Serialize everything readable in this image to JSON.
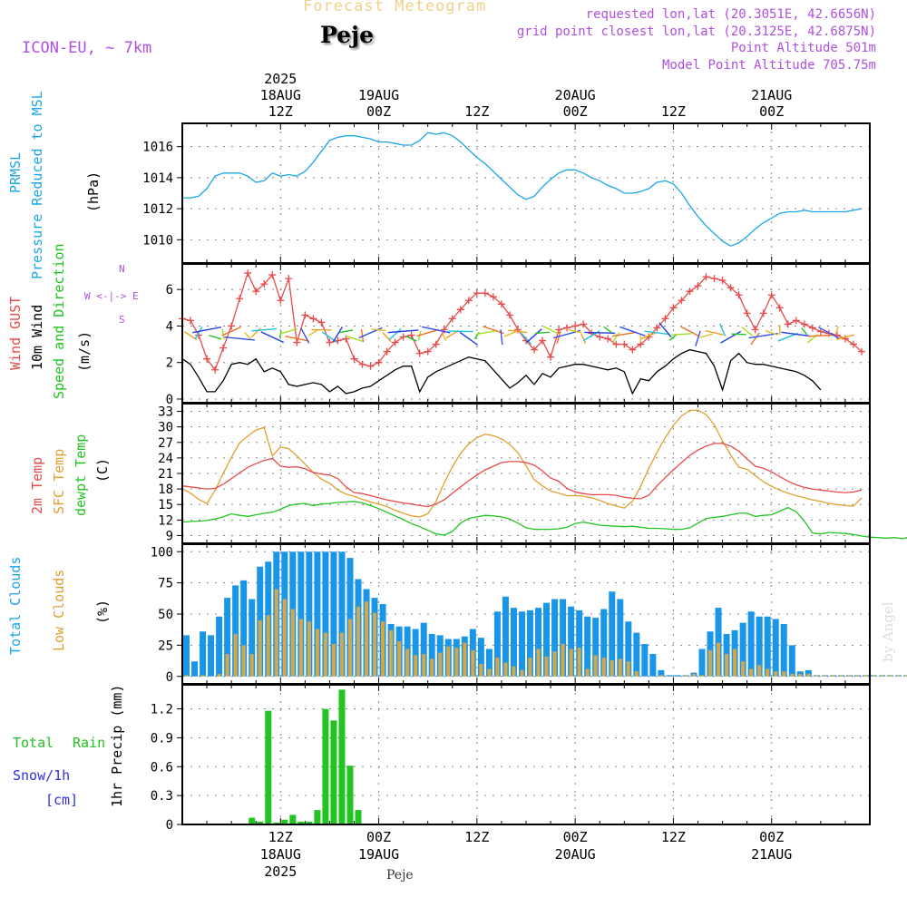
{
  "header": {
    "title_top": "Forecast Meteogram",
    "location": "Peje",
    "model": "ICON-EU, ~ 7km",
    "requested": "requested lon,lat (20.3051E, 42.6656N)",
    "grid_point": "grid point closest lon,lat (20.3125E, 42.6875N)",
    "point_alt": "Point Altitude 501m",
    "model_alt": "Model Point Altitude 705.75m"
  },
  "time_axis": {
    "top_labels": [
      {
        "hour": 12,
        "l1": "2025",
        "l2": "18AUG",
        "l3": "12Z"
      },
      {
        "hour": 24,
        "l1": "",
        "l2": "19AUG",
        "l3": "00Z"
      },
      {
        "hour": 36,
        "l1": "",
        "l2": "",
        "l3": "12Z"
      },
      {
        "hour": 48,
        "l1": "",
        "l2": "20AUG",
        "l3": "00Z"
      },
      {
        "hour": 60,
        "l1": "",
        "l2": "",
        "l3": "12Z"
      },
      {
        "hour": 72,
        "l1": "",
        "l2": "21AUG",
        "l3": "00Z"
      }
    ],
    "bottom_labels": [
      {
        "hour": 12,
        "l1": "12Z",
        "l2": "18AUG",
        "l3": "2025"
      },
      {
        "hour": 24,
        "l1": "00Z",
        "l2": "19AUG",
        "l3": ""
      },
      {
        "hour": 36,
        "l1": "12Z",
        "l2": "",
        "l3": ""
      },
      {
        "hour": 48,
        "l1": "00Z",
        "l2": "20AUG",
        "l3": ""
      },
      {
        "hour": 60,
        "l1": "12Z",
        "l2": "",
        "l3": ""
      },
      {
        "hour": 72,
        "l1": "00Z",
        "l2": "21AUG",
        "l3": ""
      }
    ],
    "footer": "Peje",
    "watermark": "by Angel"
  },
  "panels": {
    "pressure": {
      "label1": "PRMSL",
      "label2": "Pressure Reduced to MSL",
      "unit": "(hPa)"
    },
    "wind": {
      "label1": "Wind GUST",
      "label2": "10m Wind",
      "label3": "Speed and Direction",
      "unit": "(m/s)",
      "compass_n": "N",
      "compass_s": "S",
      "compass_we": "W <-|-> E"
    },
    "temp": {
      "label1": "2m Temp",
      "label2": "SFC Temp",
      "label3": "dewpt Temp",
      "unit": "(C)"
    },
    "clouds": {
      "label1": "Total Clouds",
      "label2": "Low Clouds",
      "unit": "(%)"
    },
    "precip": {
      "label1": "Total",
      "label1b": "Rain",
      "label2": "Snow/1h",
      "label3": "[cm]",
      "unit": "1hr Precip (mm)"
    }
  },
  "colors": {
    "pressure": "#1aa6e8",
    "gust": "#e84a4a",
    "wind": "#000000",
    "t2m": "#e84a4a",
    "sfc": "#e0a030",
    "dew": "#22c422",
    "total_cloud": "#1a96e8",
    "low_cloud": "#d4a84a",
    "rain": "#22c422",
    "purple": "#b050e0",
    "snow": "#3030e0",
    "title_top": "#f0d08a"
  },
  "chart_data": [
    {
      "type": "line",
      "title": "PRMSL Pressure Reduced to MSL",
      "ylabel": "(hPa)",
      "ylim": [
        1008.5,
        1017.5
      ],
      "yticks": [
        1010,
        1012,
        1014,
        1016
      ],
      "start_hour": 0,
      "series": [
        {
          "name": "PRMSL",
          "values": [
            1012.7,
            1012.7,
            1012.8,
            1013.3,
            1014.1,
            1014.3,
            1014.3,
            1014.3,
            1014.1,
            1013.7,
            1013.8,
            1014.3,
            1014.1,
            1014.2,
            1014.1,
            1014.4,
            1015.0,
            1015.7,
            1016.4,
            1016.6,
            1016.7,
            1016.7,
            1016.6,
            1016.5,
            1016.3,
            1016.3,
            1016.2,
            1016.1,
            1016.1,
            1016.4,
            1016.9,
            1016.8,
            1016.9,
            1016.7,
            1016.3,
            1015.8,
            1015.3,
            1014.9,
            1014.4,
            1013.9,
            1013.4,
            1012.9,
            1012.6,
            1012.8,
            1013.4,
            1013.9,
            1014.3,
            1014.5,
            1014.5,
            1014.3,
            1014.0,
            1013.8,
            1013.5,
            1013.3,
            1013.0,
            1013.0,
            1013.1,
            1013.3,
            1013.7,
            1013.8,
            1013.6,
            1013.0,
            1012.2,
            1011.5,
            1010.9,
            1010.4,
            1009.9,
            1009.6,
            1009.8,
            1010.2,
            1010.7,
            1011.1,
            1011.4,
            1011.7,
            1011.8,
            1011.8,
            1011.9,
            1011.8,
            1011.8,
            1011.8,
            1011.8,
            1011.8,
            1011.9,
            1012.0
          ]
        }
      ]
    },
    {
      "type": "line",
      "title": "Wind GUST / 10m Wind",
      "ylabel": "(m/s)",
      "ylim": [
        -0.2,
        7.4
      ],
      "yticks": [
        0,
        2,
        4,
        6
      ],
      "start_hour": 0,
      "series": [
        {
          "name": "Wind GUST",
          "values": [
            4.4,
            4.3,
            3.5,
            2.2,
            1.6,
            2.8,
            4.0,
            5.5,
            6.9,
            5.9,
            6.3,
            6.8,
            5.4,
            6.6,
            3.1,
            4.6,
            4.4,
            4.2,
            3.1,
            3.2,
            3.3,
            2.2,
            1.9,
            1.8,
            2.0,
            2.6,
            3.1,
            3.4,
            3.5,
            2.5,
            2.6,
            3.0,
            3.8,
            4.4,
            4.9,
            5.4,
            5.8,
            5.8,
            5.6,
            5.2,
            4.6,
            3.8,
            3.2,
            2.7,
            3.2,
            2.3,
            3.8,
            3.9,
            4.0,
            4.1,
            3.6,
            3.4,
            3.3,
            3.0,
            3.0,
            2.7,
            3.0,
            3.4,
            3.9,
            4.4,
            5.0,
            5.4,
            5.9,
            6.2,
            6.7,
            6.6,
            6.5,
            6.1,
            5.7,
            4.7,
            3.8,
            4.7,
            5.7,
            5.0,
            4.1,
            4.3,
            4.1,
            3.9,
            3.7,
            3.6,
            3.5,
            3.3,
            3.0,
            2.6
          ]
        },
        {
          "name": "10m Wind",
          "values": [
            2.2,
            1.9,
            1.2,
            0.4,
            0.4,
            1.0,
            1.9,
            2.0,
            1.9,
            2.2,
            1.5,
            1.7,
            1.5,
            0.8,
            0.7,
            0.8,
            0.9,
            0.8,
            0.4,
            0.7,
            0.3,
            0.4,
            0.6,
            0.7,
            1.0,
            1.3,
            1.6,
            1.8,
            1.8,
            0.4,
            1.2,
            1.5,
            1.7,
            1.9,
            2.1,
            2.3,
            2.2,
            2.1,
            1.6,
            1.1,
            0.6,
            0.9,
            1.3,
            0.8,
            1.4,
            1.2,
            1.7,
            1.8,
            1.9,
            1.9,
            1.8,
            1.7,
            1.6,
            1.7,
            1.5,
            0.3,
            1.1,
            1.0,
            1.5,
            1.8,
            2.2,
            2.5,
            2.7,
            2.6,
            2.5,
            1.8,
            0.5,
            2.1,
            2.5,
            2.0,
            1.9,
            1.9,
            1.8,
            1.7,
            1.6,
            1.5,
            1.3,
            1.0,
            0.5
          ]
        }
      ]
    },
    {
      "type": "line",
      "title": "2m Temp / SFC Temp / dewpt Temp",
      "ylabel": "(C)",
      "ylim": [
        7.5,
        34.5
      ],
      "yticks": [
        9,
        12,
        15,
        18,
        21,
        24,
        27,
        30,
        33
      ],
      "start_hour": 0,
      "series": [
        {
          "name": "2m Temp",
          "values": [
            18.6,
            18.4,
            18.2,
            18.0,
            18.1,
            18.9,
            20.0,
            21.1,
            22.2,
            22.9,
            23.5,
            23.9,
            22.4,
            22.2,
            22.3,
            21.9,
            21.2,
            20.9,
            20.7,
            20.0,
            18.4,
            17.3,
            17.1,
            16.7,
            16.3,
            15.9,
            15.6,
            15.3,
            15.1,
            14.8,
            14.6,
            15.1,
            15.9,
            17.2,
            18.4,
            19.6,
            20.7,
            21.7,
            22.4,
            23.1,
            23.3,
            23.3,
            23.1,
            22.6,
            21.5,
            20.1,
            19.5,
            18.1,
            17.4,
            17.1,
            16.9,
            16.9,
            16.9,
            16.8,
            16.4,
            16.2,
            16.1,
            16.8,
            18.6,
            20.2,
            21.7,
            23.1,
            24.5,
            25.5,
            26.3,
            26.8,
            26.8,
            26.3,
            25.3,
            23.8,
            22.4,
            22.0,
            21.3,
            20.4,
            19.5,
            18.8,
            18.3,
            18.0,
            17.8,
            17.6,
            17.4,
            17.3,
            17.4,
            17.8
          ]
        },
        {
          "name": "SFC Temp",
          "values": [
            18.0,
            17.2,
            16.0,
            15.2,
            17.7,
            21.0,
            24.1,
            26.9,
            28.2,
            29.4,
            29.9,
            24.4,
            26.1,
            25.8,
            24.4,
            22.8,
            21.2,
            19.9,
            19.1,
            17.8,
            17.0,
            16.6,
            16.0,
            15.5,
            15.1,
            14.6,
            13.9,
            13.3,
            12.8,
            12.6,
            13.2,
            15.6,
            19.2,
            22.3,
            24.9,
            26.7,
            27.9,
            28.6,
            28.3,
            27.7,
            26.6,
            25.0,
            22.5,
            19.8,
            18.6,
            17.6,
            17.2,
            16.7,
            16.7,
            16.6,
            16.3,
            15.8,
            15.2,
            14.7,
            14.3,
            15.6,
            18.5,
            22.0,
            25.1,
            27.9,
            30.3,
            32.1,
            33.2,
            33.2,
            32.4,
            30.4,
            27.3,
            24.6,
            22.2,
            21.8,
            20.6,
            19.4,
            18.5,
            17.8,
            17.2,
            16.7,
            16.3,
            15.9,
            15.6,
            15.2,
            15.0,
            14.8,
            14.7,
            16.3
          ]
        },
        {
          "name": "dewpt Temp",
          "values": [
            11.6,
            11.7,
            11.8,
            11.9,
            12.2,
            12.6,
            13.2,
            12.9,
            12.7,
            13.0,
            13.3,
            13.5,
            14.1,
            14.8,
            15.1,
            15.2,
            14.8,
            15.1,
            15.2,
            15.4,
            15.5,
            15.6,
            15.3,
            14.8,
            14.2,
            13.5,
            12.8,
            12.1,
            11.3,
            10.7,
            10.0,
            9.3,
            9.1,
            9.8,
            11.4,
            12.3,
            12.6,
            12.9,
            12.8,
            12.6,
            12.2,
            11.4,
            10.5,
            10.2,
            10.2,
            10.2,
            10.3,
            10.6,
            11.3,
            11.6,
            11.3,
            11.0,
            10.9,
            10.8,
            10.7,
            10.8,
            10.6,
            10.4,
            10.4,
            10.3,
            10.2,
            10.2,
            10.5,
            11.4,
            12.3,
            12.5,
            12.7,
            13.0,
            13.3,
            13.3,
            12.7,
            12.9,
            13.0,
            13.7,
            14.4,
            13.6,
            11.8,
            9.5,
            9.3,
            9.6,
            9.5,
            9.4,
            9.2,
            8.9,
            8.7,
            8.6,
            8.5,
            8.6,
            8.4,
            8.8
          ]
        }
      ]
    },
    {
      "type": "bar",
      "title": "Total Clouds / Low Clouds",
      "ylabel": "(%)",
      "ylim": [
        -6,
        106
      ],
      "yticks": [
        0,
        25,
        50,
        75,
        100
      ],
      "start_hour": 1,
      "series": [
        {
          "name": "Total Clouds",
          "values": [
            33,
            12,
            36,
            33,
            48,
            63,
            73,
            77,
            62,
            88,
            92,
            100,
            100,
            100,
            100,
            100,
            100,
            100,
            100,
            100,
            95,
            78,
            70,
            63,
            58,
            42,
            40,
            40,
            38,
            43,
            34,
            33,
            30,
            30,
            32,
            38,
            31,
            22,
            52,
            64,
            55,
            52,
            53,
            55,
            59,
            62,
            62,
            56,
            53,
            48,
            47,
            54,
            68,
            62,
            44,
            35,
            26,
            18,
            5,
            1,
            1,
            1,
            3,
            22,
            36,
            55,
            34,
            37,
            43,
            52,
            48,
            48,
            46,
            42,
            25,
            4,
            5,
            1,
            1,
            1,
            1,
            1,
            1,
            1,
            1,
            1,
            1,
            1,
            1
          ]
        },
        {
          "name": "Low Clouds",
          "values": [
            1,
            0,
            1,
            0,
            2,
            18,
            34,
            25,
            18,
            45,
            49,
            70,
            62,
            54,
            46,
            44,
            38,
            35,
            26,
            35,
            46,
            56,
            60,
            51,
            44,
            37,
            28,
            22,
            17,
            18,
            14,
            19,
            24,
            23,
            27,
            21,
            10,
            6,
            15,
            11,
            8,
            5,
            15,
            22,
            16,
            20,
            26,
            22,
            23,
            6,
            17,
            15,
            13,
            14,
            12,
            4,
            0,
            0,
            1,
            0,
            0,
            1,
            2,
            1,
            21,
            27,
            18,
            22,
            12,
            6,
            9,
            6,
            4,
            4,
            2,
            2,
            2,
            1,
            1,
            1,
            1,
            1,
            1,
            1,
            1,
            1,
            1,
            1,
            1
          ]
        }
      ]
    },
    {
      "type": "bar",
      "title": "1hr Precip",
      "ylabel": "1hr Precip (mm)",
      "ylim": [
        0,
        1.45
      ],
      "yticks": [
        0,
        0.3,
        0.6,
        0.9,
        1.2
      ],
      "start_hour": 1,
      "series": [
        {
          "name": "Total Rain",
          "values": [
            0,
            0,
            0,
            0,
            0,
            0,
            0,
            0,
            0.07,
            0.03,
            1.18,
            0.02,
            0.05,
            0.1,
            0.03,
            0.03,
            0.15,
            1.2,
            1.08,
            1.4,
            0.61,
            0.15,
            0,
            0,
            0,
            0,
            0,
            0,
            0,
            0,
            0,
            0,
            0,
            0,
            0,
            0,
            0,
            0,
            0,
            0,
            0,
            0,
            0,
            0,
            0,
            0,
            0,
            0,
            0,
            0,
            0,
            0,
            0,
            0,
            0,
            0,
            0,
            0,
            0,
            0,
            0,
            0,
            0,
            0,
            0,
            0,
            0,
            0,
            0,
            0,
            0,
            0,
            0,
            0,
            0,
            0,
            0,
            0,
            0,
            0,
            0,
            0,
            0,
            0,
            0,
            0,
            0,
            0
          ]
        }
      ]
    }
  ]
}
